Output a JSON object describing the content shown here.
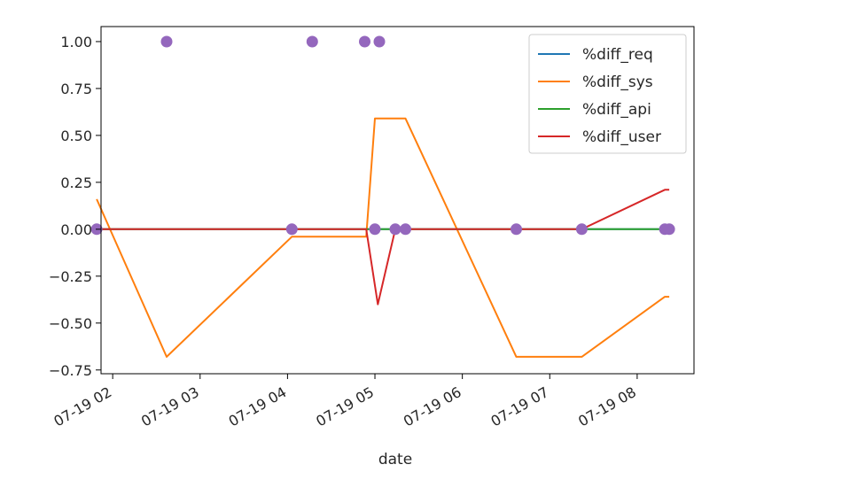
{
  "chart_data": {
    "type": "line",
    "xlabel": "date",
    "ylabel": "",
    "xlim": [
      "07-19 01:52",
      "08:39"
    ],
    "ylim": [
      -0.77,
      1.08
    ],
    "x_ticks": [
      {
        "t": "02:00",
        "label": "07-19 02"
      },
      {
        "t": "03:00",
        "label": "07-19 03"
      },
      {
        "t": "04:00",
        "label": "07-19 04"
      },
      {
        "t": "05:00",
        "label": "07-19 05"
      },
      {
        "t": "06:00",
        "label": "07-19 06"
      },
      {
        "t": "07:00",
        "label": "07-19 07"
      },
      {
        "t": "08:00",
        "label": "07-19 08"
      }
    ],
    "y_ticks": [
      {
        "v": 1.0,
        "label": "1.00"
      },
      {
        "v": 0.75,
        "label": "0.75"
      },
      {
        "v": 0.5,
        "label": "0.50"
      },
      {
        "v": 0.25,
        "label": "0.25"
      },
      {
        "v": 0.0,
        "label": "0.00"
      },
      {
        "v": -0.25,
        "label": "−0.25"
      },
      {
        "v": -0.5,
        "label": "−0.50"
      },
      {
        "v": -0.75,
        "label": "−0.75"
      }
    ],
    "grid": false,
    "legend_position": "top-right",
    "series": [
      {
        "name": "%diff_req",
        "color": "#1f77b4",
        "points": [
          [
            "01:49",
            0
          ],
          [
            "02:37",
            0
          ],
          [
            "04:03",
            0
          ],
          [
            "04:54",
            0
          ],
          [
            "05:00",
            0
          ],
          [
            "05:14",
            0
          ],
          [
            "05:21",
            0
          ],
          [
            "06:37",
            0
          ],
          [
            "07:22",
            0
          ],
          [
            "08:19",
            0
          ],
          [
            "08:22",
            0
          ]
        ]
      },
      {
        "name": "%diff_sys",
        "color": "#ff7f0e",
        "points": [
          [
            "01:49",
            0.16
          ],
          [
            "02:37",
            -0.68
          ],
          [
            "04:03",
            -0.04
          ],
          [
            "04:54",
            -0.04
          ],
          [
            "05:00",
            0.59
          ],
          [
            "05:21",
            0.59
          ],
          [
            "06:37",
            -0.68
          ],
          [
            "07:22",
            -0.68
          ],
          [
            "08:19",
            -0.36
          ],
          [
            "08:22",
            -0.36
          ]
        ]
      },
      {
        "name": "%diff_api",
        "color": "#2ca02c",
        "points": [
          [
            "01:49",
            0
          ],
          [
            "02:37",
            0
          ],
          [
            "04:03",
            0
          ],
          [
            "04:54",
            0
          ],
          [
            "05:00",
            0
          ],
          [
            "05:14",
            0
          ],
          [
            "05:21",
            0
          ],
          [
            "06:37",
            0
          ],
          [
            "07:22",
            0
          ],
          [
            "08:19",
            0
          ],
          [
            "08:22",
            0
          ]
        ]
      },
      {
        "name": "%diff_user",
        "color": "#d62728",
        "points": [
          [
            "01:49",
            0
          ],
          [
            "02:37",
            0
          ],
          [
            "04:03",
            0
          ],
          [
            "04:54",
            0
          ],
          [
            "05:02",
            -0.4
          ],
          [
            "05:14",
            0
          ],
          [
            "05:21",
            0
          ],
          [
            "06:37",
            0
          ],
          [
            "07:22",
            0
          ],
          [
            "08:19",
            0.21
          ],
          [
            "08:22",
            0.21
          ]
        ]
      }
    ],
    "markers": {
      "color": "#9467bd",
      "points": [
        [
          "01:49",
          0
        ],
        [
          "02:37",
          1
        ],
        [
          "04:03",
          0
        ],
        [
          "04:17",
          1
        ],
        [
          "04:53",
          1
        ],
        [
          "05:00",
          0
        ],
        [
          "05:03",
          1
        ],
        [
          "05:14",
          0
        ],
        [
          "05:21",
          0
        ],
        [
          "06:37",
          0
        ],
        [
          "07:22",
          0
        ],
        [
          "08:19",
          0
        ],
        [
          "08:22",
          0
        ]
      ]
    }
  }
}
